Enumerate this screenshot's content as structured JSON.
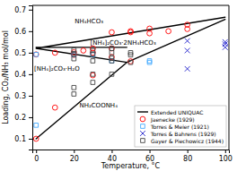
{
  "chart_data": {
    "type": "scatter",
    "x_label": "Temperature, °C",
    "y_label": "Loading, CO₂/NH₃ mol/mol",
    "xlim": [
      -2,
      102
    ],
    "ylim": [
      0.05,
      0.72
    ],
    "xticks": [
      0,
      20,
      40,
      60,
      80,
      100
    ],
    "yticks": [
      0.1,
      0.2,
      0.3,
      0.4,
      0.5,
      0.6,
      0.7
    ],
    "grid": false,
    "legend": "lower right",
    "annotations": [
      {
        "text": "NH₄HCO₃",
        "x": 28,
        "y": 0.645
      },
      {
        "text": "[NH₄]₂CO₃·2NH₄HCO₃",
        "x": 46,
        "y": 0.545
      },
      {
        "text": "[NH₄]₂CO₃·H₂O",
        "x": 11,
        "y": 0.425
      },
      {
        "text": "NH₂COONH₄",
        "x": 33,
        "y": 0.255
      }
    ],
    "series": [
      {
        "name": "Extended UNIQUAC",
        "type": "line",
        "color": "black",
        "x": [
          0,
          100,
          null,
          0,
          48,
          null,
          0,
          48,
          null,
          48,
          100,
          null,
          0,
          48
        ],
        "values": [
          0.52,
          0.665,
          null,
          0.525,
          0.525,
          null,
          0.52,
          0.455,
          null,
          0.455,
          0.655,
          null,
          0.1,
          0.455
        ]
      },
      {
        "name": "Jaenecke (1929)",
        "type": "scatter",
        "color": "red",
        "marker": "circle",
        "x": [
          0,
          0,
          10,
          10,
          20,
          20,
          25,
          30,
          30,
          30,
          40,
          40,
          40,
          50,
          50,
          50,
          60,
          60,
          70,
          80,
          80
        ],
        "values": [
          0.1,
          0.492,
          0.245,
          0.5,
          0.49,
          0.502,
          0.51,
          0.395,
          0.5,
          0.52,
          0.48,
          0.52,
          0.595,
          0.46,
          0.595,
          0.6,
          0.59,
          0.612,
          0.6,
          0.61,
          0.63
        ]
      },
      {
        "name": "Torres & Meier (1921)",
        "type": "scatter",
        "color": "#44aaff",
        "marker": "square",
        "x": [
          0,
          0,
          20,
          30,
          40,
          60,
          60
        ],
        "values": [
          0.163,
          0.492,
          0.49,
          0.492,
          0.462,
          0.462,
          0.455
        ]
      },
      {
        "name": "Torres & Bahrens (1929)",
        "type": "scatter",
        "color": "#2222cc",
        "marker": "cross",
        "x": [
          80,
          80,
          80,
          100,
          100,
          100
        ],
        "values": [
          0.425,
          0.51,
          0.555,
          0.525,
          0.54,
          0.55
        ]
      },
      {
        "name": "Gayer & Piechowicz (1944)",
        "type": "scatter",
        "color": "#444444",
        "marker": "square",
        "x": [
          20,
          20,
          20,
          20,
          20,
          30,
          30,
          30,
          30,
          30,
          40,
          40,
          40,
          40,
          40,
          50,
          50,
          50
        ],
        "values": [
          0.308,
          0.338,
          0.472,
          0.496,
          0.512,
          0.362,
          0.4,
          0.462,
          0.494,
          0.51,
          0.4,
          0.462,
          0.474,
          0.5,
          0.52,
          0.455,
          0.49,
          0.5
        ]
      }
    ]
  }
}
